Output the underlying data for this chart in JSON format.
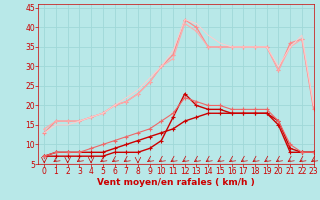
{
  "xlabel": "Vent moyen/en rafales ( km/h )",
  "xlim": [
    -0.5,
    23
  ],
  "ylim": [
    5,
    46
  ],
  "yticks": [
    5,
    10,
    15,
    20,
    25,
    30,
    35,
    40,
    45
  ],
  "xticks": [
    0,
    1,
    2,
    3,
    4,
    5,
    6,
    7,
    8,
    9,
    10,
    11,
    12,
    13,
    14,
    15,
    16,
    17,
    18,
    19,
    20,
    21,
    22,
    23
  ],
  "background_color": "#b8e8e8",
  "grid_color": "#a0d8d8",
  "series": [
    {
      "x": [
        0,
        1,
        2,
        3,
        4,
        5,
        6,
        7,
        8,
        9,
        10,
        11,
        12,
        13,
        14,
        15,
        16,
        17,
        18,
        19,
        20,
        21,
        22,
        23
      ],
      "y": [
        7,
        7,
        7,
        7,
        7,
        7,
        8,
        8,
        8,
        9,
        11,
        17,
        23,
        20,
        19,
        19,
        18,
        18,
        18,
        18,
        15,
        8,
        8,
        8
      ],
      "color": "#cc0000",
      "linewidth": 1.0,
      "marker": "+",
      "markersize": 3.0
    },
    {
      "x": [
        0,
        1,
        2,
        3,
        4,
        5,
        6,
        7,
        8,
        9,
        10,
        11,
        12,
        13,
        14,
        15,
        16,
        17,
        18,
        19,
        20,
        21,
        22,
        23
      ],
      "y": [
        7,
        8,
        8,
        8,
        8,
        8,
        9,
        10,
        11,
        12,
        13,
        14,
        16,
        17,
        18,
        18,
        18,
        18,
        18,
        18,
        16,
        9,
        8,
        8
      ],
      "color": "#cc0000",
      "linewidth": 1.0,
      "marker": "+",
      "markersize": 3.0
    },
    {
      "x": [
        0,
        1,
        2,
        3,
        4,
        5,
        6,
        7,
        8,
        9,
        10,
        11,
        12,
        13,
        14,
        15,
        16,
        17,
        18,
        19,
        20,
        21,
        22,
        23
      ],
      "y": [
        7,
        8,
        8,
        8,
        9,
        10,
        11,
        12,
        13,
        14,
        16,
        18,
        22,
        21,
        20,
        20,
        19,
        19,
        19,
        19,
        16,
        10,
        8,
        8
      ],
      "color": "#ee6666",
      "linewidth": 0.8,
      "marker": "+",
      "markersize": 2.5
    },
    {
      "x": [
        0,
        1,
        2,
        3,
        4,
        5,
        6,
        7,
        8,
        9,
        10,
        11,
        12,
        13,
        14,
        15,
        16,
        17,
        18,
        19,
        20,
        21,
        22,
        23
      ],
      "y": [
        13,
        16,
        16,
        16,
        17,
        18,
        20,
        21,
        23,
        26,
        30,
        33,
        42,
        40,
        35,
        35,
        35,
        35,
        35,
        35,
        29,
        36,
        37,
        19
      ],
      "color": "#ff8888",
      "linewidth": 0.9,
      "marker": "+",
      "markersize": 2.5
    },
    {
      "x": [
        0,
        1,
        2,
        3,
        4,
        5,
        6,
        7,
        8,
        9,
        10,
        11,
        12,
        13,
        14,
        15,
        16,
        17,
        18,
        19,
        20,
        21,
        22,
        23
      ],
      "y": [
        14,
        16,
        16,
        16,
        17,
        18,
        20,
        21,
        23,
        26,
        30,
        32,
        41,
        39,
        35,
        35,
        35,
        35,
        35,
        35,
        29,
        35,
        37,
        20
      ],
      "color": "#ffaaaa",
      "linewidth": 0.8,
      "marker": "+",
      "markersize": 2.0
    },
    {
      "x": [
        0,
        1,
        2,
        3,
        4,
        5,
        6,
        7,
        8,
        9,
        10,
        11,
        12,
        13,
        14,
        15,
        16,
        17,
        18,
        19,
        20,
        21,
        22,
        23
      ],
      "y": [
        13,
        15,
        15,
        16,
        17,
        18,
        20,
        22,
        24,
        27,
        30,
        34,
        42,
        41,
        38,
        36,
        35,
        35,
        35,
        35,
        30,
        35,
        38,
        20
      ],
      "color": "#ffcccc",
      "linewidth": 0.7,
      "marker": null,
      "markersize": 0
    }
  ],
  "arrow_angles": [
    0,
    -45,
    0,
    -45,
    0,
    -45,
    -45,
    -45,
    0,
    -45,
    -45,
    -45,
    -45,
    -45,
    -45,
    -45,
    -45,
    -45,
    -45,
    -45,
    -45,
    -45,
    -45,
    -45
  ],
  "arrow_color": "#cc0000",
  "xlabel_color": "#cc0000",
  "tick_color": "#cc0000",
  "xlabel_fontsize": 6.5,
  "tick_fontsize": 5.5
}
